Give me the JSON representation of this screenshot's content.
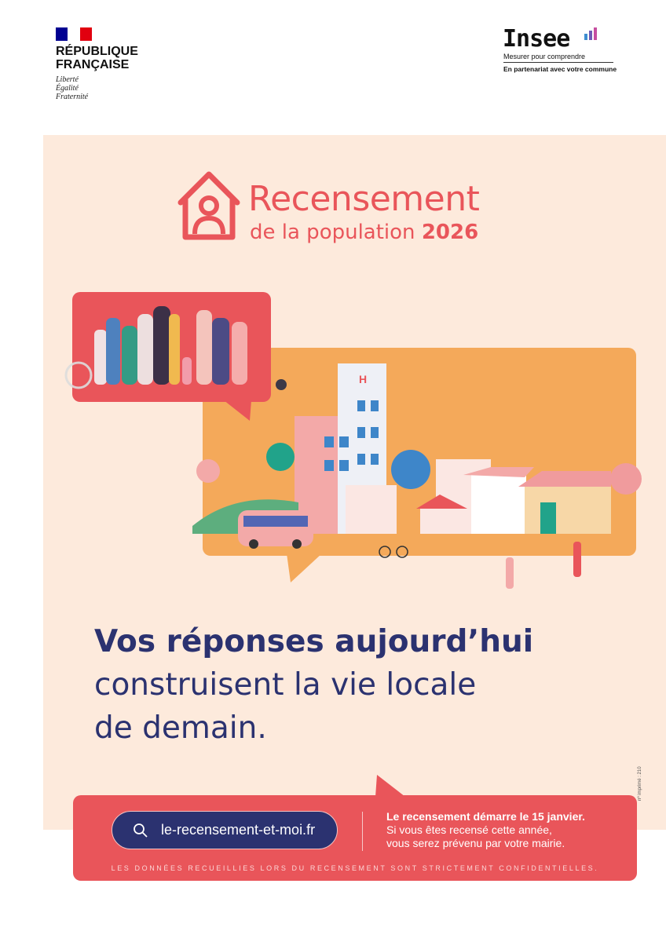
{
  "header": {
    "republique": {
      "line1": "RÉPUBLIQUE",
      "line2": "FRANÇAISE",
      "motto": [
        "Liberté",
        "Égalité",
        "Fraternité"
      ],
      "flag_colors": [
        "#000091",
        "#ffffff",
        "#e1000f"
      ]
    },
    "insee": {
      "name": "Insee",
      "tagline": "Mesurer pour comprendre",
      "partnership": "En partenariat avec votre commune"
    }
  },
  "title": {
    "main": "Recensement",
    "sub_prefix": "de la population",
    "year": "2026",
    "icon": "house-person-icon"
  },
  "headline": {
    "line1": "Vos réponses aujourd’hui",
    "line2": "construisent la vie locale",
    "line3": "de demain."
  },
  "footer": {
    "website": "le-recensement-et-moi.fr",
    "search_icon": "search-icon",
    "info_bold": "Le recensement démarre le 15 janvier.",
    "info_line2": "Si vous êtes recensé cette année,",
    "info_line3": "vous serez prévenu par votre mairie.",
    "confidential": "LES DONNÉES RECUEILLIES LORS DU RECENSEMENT SONT STRICTEMENT CONFIDENTIELLES.",
    "print_number": "nº imprimé : 210"
  },
  "colors": {
    "red": "#e9555a",
    "orange": "#f4a95a",
    "navy": "#2b3270",
    "cream": "#fdeadc"
  }
}
